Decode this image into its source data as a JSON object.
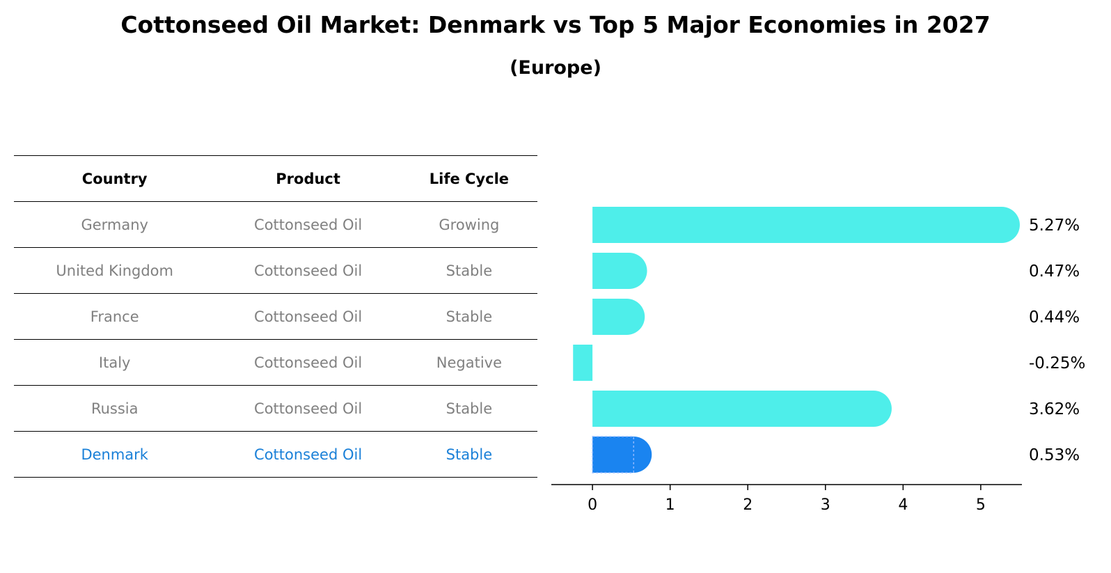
{
  "title": "Cottonseed Oil Market: Denmark vs Top 5 Major Economies in 2027",
  "subtitle": "(Europe)",
  "table": {
    "headers": [
      "Country",
      "Product",
      "Life Cycle"
    ],
    "rows": [
      {
        "country": "Germany",
        "product": "Cottonseed Oil",
        "life_cycle": "Growing"
      },
      {
        "country": "United Kingdom",
        "product": "Cottonseed Oil",
        "life_cycle": "Stable"
      },
      {
        "country": "France",
        "product": "Cottonseed Oil",
        "life_cycle": "Stable"
      },
      {
        "country": "Italy",
        "product": "Cottonseed Oil",
        "life_cycle": "Negative"
      },
      {
        "country": "Russia",
        "product": "Cottonseed Oil",
        "life_cycle": "Stable"
      },
      {
        "country": "Denmark",
        "product": "Cottonseed Oil",
        "life_cycle": "Stable"
      }
    ],
    "highlight_row": "Denmark",
    "text_color": "#808080",
    "highlight_color": "#1a80d8"
  },
  "chart_data": {
    "type": "bar",
    "orientation": "horizontal",
    "categories": [
      "Germany",
      "United Kingdom",
      "France",
      "Italy",
      "Russia",
      "Denmark"
    ],
    "values": [
      5.27,
      0.47,
      0.44,
      -0.25,
      3.62,
      0.53
    ],
    "value_labels": [
      "5.27%",
      "0.47%",
      "0.44%",
      "-0.25%",
      "3.62%",
      "0.53%"
    ],
    "xticks": [
      0,
      1,
      2,
      3,
      4,
      5
    ],
    "xlim": [
      -0.53,
      5.53
    ],
    "grid": false,
    "bar_color": "#4eeeea",
    "highlight_color": "#1a84f0",
    "highlight_category": "Denmark"
  }
}
